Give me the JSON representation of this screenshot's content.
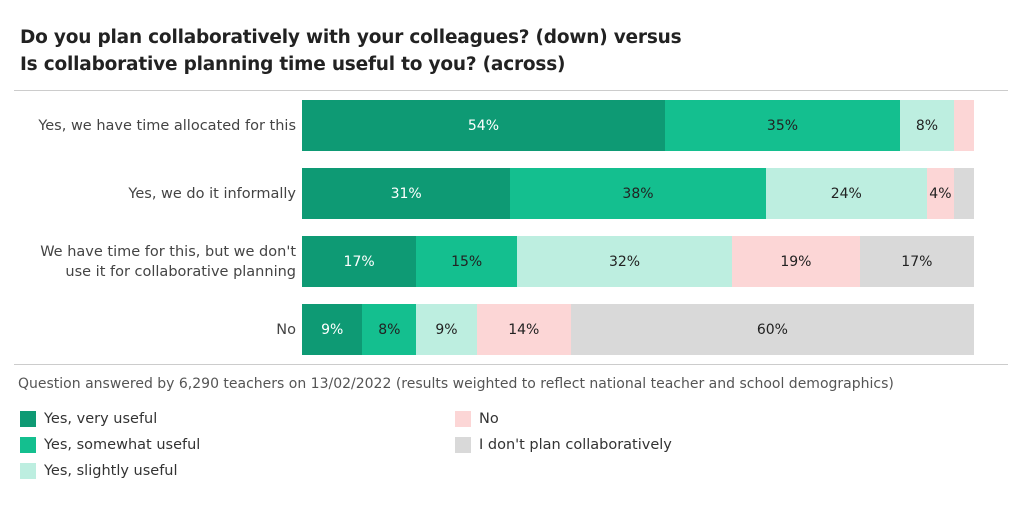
{
  "chart_data": {
    "type": "bar",
    "orientation": "horizontal-stacked",
    "title_lines": [
      "Do you plan collaboratively with your colleagues? (down) versus",
      "Is collaborative planning time useful to you? (across)"
    ],
    "categories": [
      "Yes, we have time allocated for this",
      "Yes, we do it informally",
      "We have time for this, but we don't use it for collaborative planning",
      "No"
    ],
    "category_lines": [
      [
        "Yes, we have time allocated for this"
      ],
      [
        "Yes, we do it informally"
      ],
      [
        "We have time for this, but we don't",
        "use it for collaborative planning"
      ],
      [
        "No"
      ]
    ],
    "series": [
      {
        "name": "Yes, very useful",
        "color": "#0e9a74",
        "values": [
          54,
          31,
          17,
          9
        ],
        "labels": [
          "54%",
          "31%",
          "17%",
          "9%"
        ]
      },
      {
        "name": "Yes, somewhat useful",
        "color": "#14bf8f",
        "values": [
          35,
          38,
          15,
          8
        ],
        "labels": [
          "35%",
          "38%",
          "15%",
          "8%"
        ]
      },
      {
        "name": "Yes, slightly useful",
        "color": "#bdeee0",
        "values": [
          8,
          24,
          32,
          9
        ],
        "labels": [
          "8%",
          "24%",
          "32%",
          "9%"
        ]
      },
      {
        "name": "No",
        "color": "#fcd6d6",
        "values": [
          3,
          4,
          19,
          14
        ],
        "labels": [
          "",
          "4%",
          "19%",
          "14%"
        ]
      },
      {
        "name": "I don't plan collaboratively",
        "color": "#d9d9d9",
        "values": [
          0,
          3,
          17,
          60
        ],
        "labels": [
          "",
          "",
          "17%",
          "60%"
        ]
      }
    ],
    "xlim": [
      0,
      100
    ],
    "note": "Question answered by 6,290 teachers on 13/02/2022 (results weighted to reflect national teacher and school demographics)",
    "legend_position": "bottom"
  }
}
